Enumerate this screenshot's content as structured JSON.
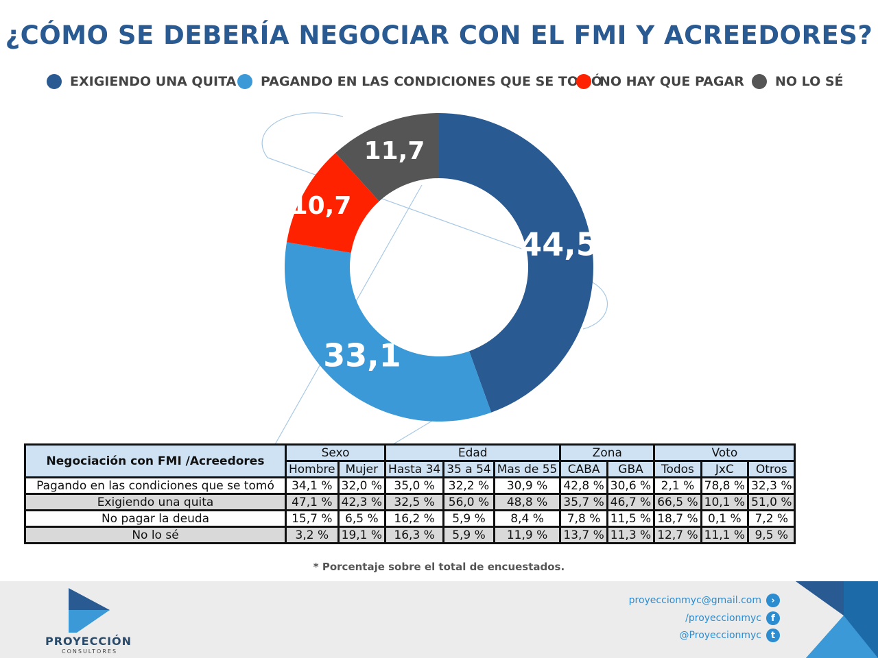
{
  "title": "¿CÓMO SE DEBERÍA NEGOCIAR CON EL FMI Y ACREEDORES?",
  "chart_data": {
    "type": "pie",
    "donut": true,
    "categories": [
      "EXIGIENDO UNA QUITA",
      "PAGANDO EN LAS CONDICIONES QUE SE TOMÓ",
      "NO HAY QUE PAGAR",
      "NO LO SÉ"
    ],
    "values": [
      44.5,
      33.1,
      10.7,
      11.7
    ],
    "labels": [
      "44,5",
      "33,1",
      "10,7",
      "11,7"
    ],
    "colors": [
      "#2a5a92",
      "#3a99d6",
      "#ff2200",
      "#555555"
    ],
    "legend_position": "top"
  },
  "table": {
    "title": "Negociación con FMI /Acreedores",
    "groups": [
      "Sexo",
      "Edad",
      "Zona",
      "Voto"
    ],
    "columns": [
      "Hombre",
      "Mujer",
      "Hasta 34",
      "35 a 54",
      "Mas de 55",
      "CABA",
      "GBA",
      "Todos",
      "JxC",
      "Otros"
    ],
    "rows": [
      {
        "label": "Pagando en las condiciones que se tomó",
        "values": [
          "34,1 %",
          "32,0 %",
          "35,0 %",
          "32,2 %",
          "30,9 %",
          "42,8 %",
          "30,6 %",
          "2,1 %",
          "78,8 %",
          "32,3 %"
        ]
      },
      {
        "label": "Exigiendo una quita",
        "values": [
          "47,1 %",
          "42,3 %",
          "32,5 %",
          "56,0 %",
          "48,8 %",
          "35,7 %",
          "46,7 %",
          "66,5 %",
          "10,1 %",
          "51,0 %"
        ]
      },
      {
        "label": "No pagar la deuda",
        "values": [
          "15,7 %",
          "6,5 %",
          "16,2 %",
          "5,9 %",
          "8,4 %",
          "7,8 %",
          "11,5 %",
          "18,7 %",
          "0,1 %",
          "7,2 %"
        ]
      },
      {
        "label": "No lo sé",
        "values": [
          "3,2 %",
          "19,1 %",
          "16,3 %",
          "5,9 %",
          "11,9 %",
          "13,7 %",
          "11,3 %",
          "12,7 %",
          "11,1 %",
          "9,5 %"
        ]
      }
    ]
  },
  "note": "* Porcentaje sobre el total de encuestados.",
  "footer": {
    "logo_name": "PROYECCIÓN",
    "logo_sub": "CONSULTORES",
    "email": "proyeccionmyc@gmail.com",
    "facebook": "/proyeccionmyc",
    "twitter": "@Proyeccionmyc"
  }
}
